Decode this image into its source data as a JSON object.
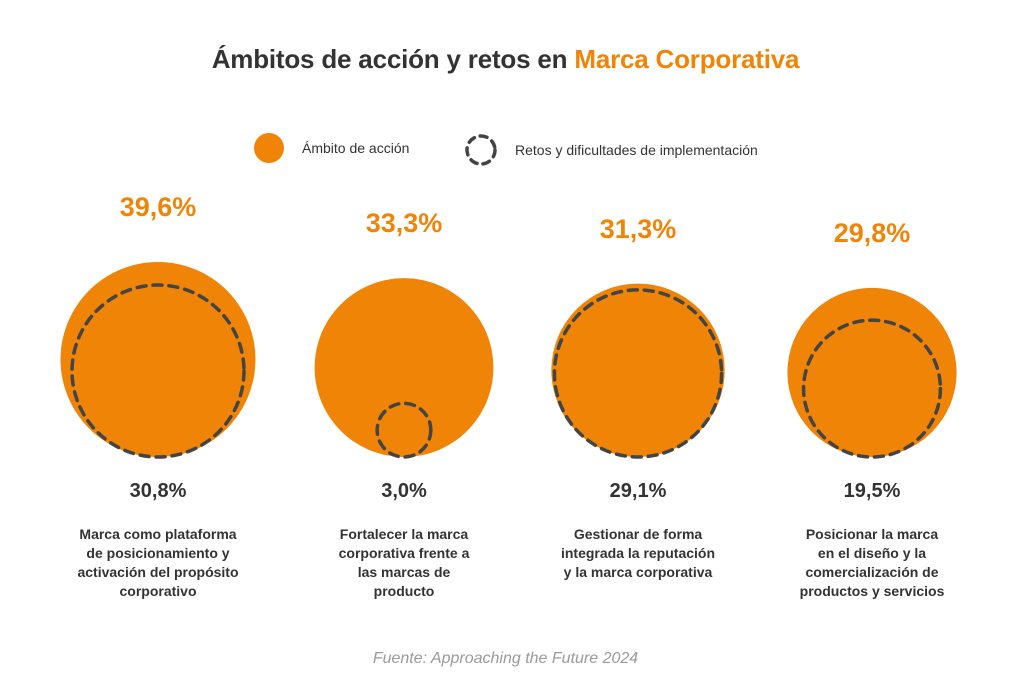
{
  "title": {
    "prefix": "Ámbitos de acción y retos en ",
    "highlight": "Marca Corporativa"
  },
  "legend": {
    "action_label": "Ámbito de acción",
    "challenges_label": "Retos y dificultades de implementación"
  },
  "colors": {
    "accent": "#f08407",
    "text": "#333333",
    "dashed_circle": "#444444",
    "source": "#9a9a9a"
  },
  "chart_data": {
    "type": "bubble",
    "series": [
      {
        "name": "Ámbito de acción",
        "values": [
          39.6,
          33.3,
          31.3,
          29.8
        ]
      },
      {
        "name": "Retos y dificultades de implementación",
        "values": [
          30.8,
          3.0,
          29.1,
          19.5
        ]
      }
    ],
    "categories": [
      "Marca como plataforma de posicionamiento y activación del propósito corporativo",
      "Fortalecer la marca corporativa frente a las marcas de producto",
      "Gestionar de forma integrada la reputación y la marca corporativa",
      "Posicionar la marca en el diseño y la comercialización de productos y servicios"
    ],
    "items": [
      {
        "action_label": "39,6%",
        "challenge_label": "30,8%",
        "category_lines": [
          "Marca como plataforma",
          "de posicionamiento y",
          "activación del propósito",
          "corporativo"
        ]
      },
      {
        "action_label": "33,3%",
        "challenge_label": "3,0%",
        "category_lines": [
          "Fortalecer la marca",
          "corporativa frente a",
          "las marcas de",
          "producto"
        ]
      },
      {
        "action_label": "31,3%",
        "challenge_label": "29,1%",
        "category_lines": [
          "Gestionar de forma",
          "integrada la reputación",
          "y la marca corporativa"
        ]
      },
      {
        "action_label": "29,8%",
        "challenge_label": "19,5%",
        "category_lines": [
          "Posicionar la marca",
          "en el diseño y la",
          "comercialización de",
          "productos y servicios"
        ]
      }
    ]
  },
  "source": "Fuente: Approaching the Future 2024"
}
